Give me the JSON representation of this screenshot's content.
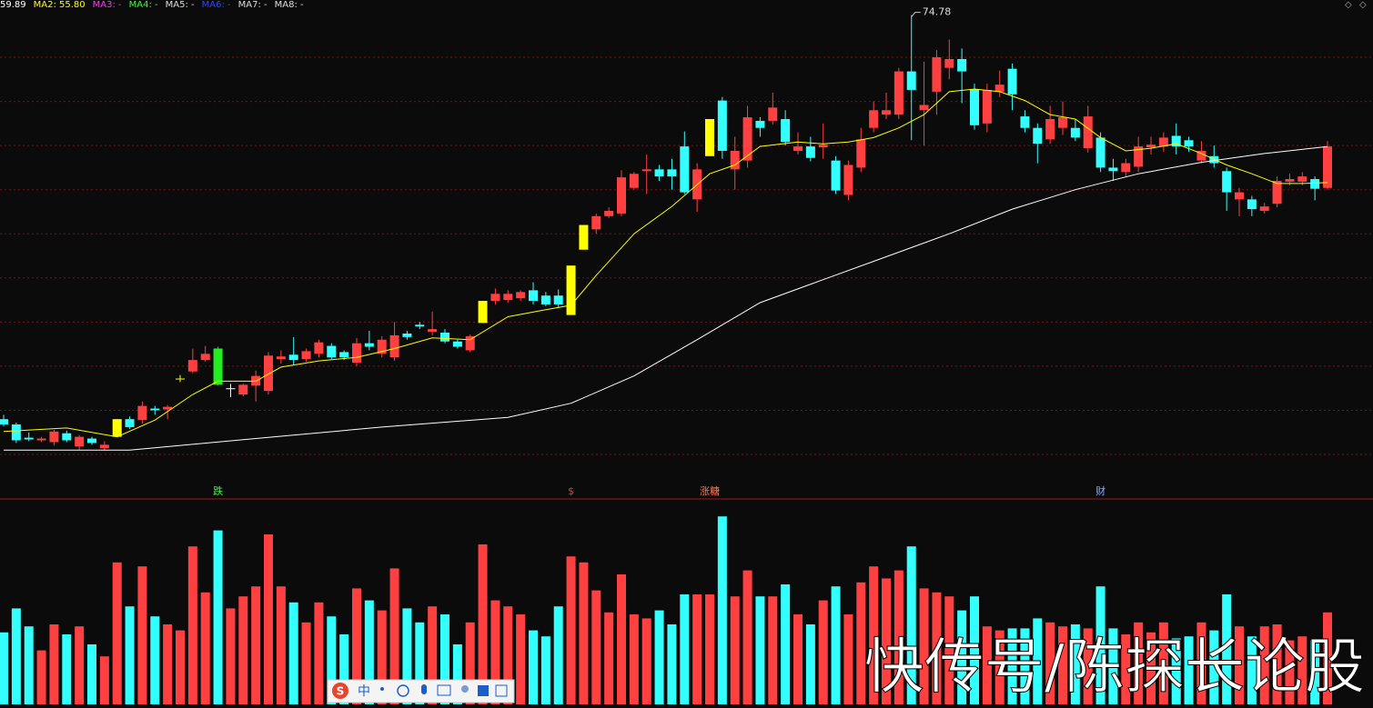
{
  "chart_data": {
    "type": "candlestick",
    "legend": [
      {
        "label": "59.89",
        "color": "#ffffff"
      },
      {
        "label": "MA2: 55.80",
        "color": "#ffff00"
      },
      {
        "label": "MA3: -",
        "color": "#ff33ff"
      },
      {
        "label": "MA4: -",
        "color": "#33ff33"
      },
      {
        "label": "MA5: -",
        "color": "#dddddd"
      },
      {
        "label": "MA6: -",
        "color": "#3344ff"
      },
      {
        "label": "MA7: -",
        "color": "#dddddd"
      },
      {
        "label": "MA8: -",
        "color": "#dddddd"
      }
    ],
    "ylim": [
      20.06,
      76.49
    ],
    "grid_levels": [
      25,
      30,
      35,
      40,
      45,
      50,
      55,
      60,
      65,
      70
    ],
    "up_color": "#ff4040",
    "down_color": "#33ffff",
    "limit_up": [
      9,
      14,
      38,
      45,
      46,
      56
    ],
    "limit_up_color": "#ffff00",
    "limit_down": [
      17
    ],
    "limit_down_color": "#22ee22",
    "max_label": 74.78,
    "max_index": 72,
    "candles": {
      "open": [
        29.0,
        28.4,
        26.9,
        26.6,
        26.4,
        27.4,
        25.9,
        26.8,
        25.7,
        27.0,
        29.0,
        28.9,
        30.2,
        30.1,
        33.6,
        34.4,
        35.7,
        37.0,
        32.5,
        31.8,
        32.8,
        32.2,
        35.8,
        36.3,
        35.8,
        36.4,
        37.3,
        36.6,
        35.4,
        37.6,
        36.4,
        36.0,
        38.7,
        39.7,
        38.9,
        38.8,
        37.8,
        36.8,
        39.9,
        42.4,
        42.5,
        42.7,
        43.6,
        43.0,
        43.0,
        40.8,
        48.2,
        50.5,
        52.0,
        52.3,
        55.2,
        57.1,
        57.3,
        57.3,
        59.9,
        53.9,
        58.8,
        65.1,
        57.3,
        58.3,
        62.8,
        62.8,
        63.0,
        59.4,
        59.9,
        59.8,
        58.3,
        54.4,
        57.5,
        62.0,
        63.5,
        63.5,
        68.4,
        64.0,
        66.1,
        68.8,
        69.8,
        66.4,
        62.5,
        66.1,
        68.7,
        63.3,
        62.0,
        60.7,
        62.0,
        62.0,
        59.7,
        60.9,
        57.5,
        57.0,
        57.6,
        59.8,
        59.9,
        61.1,
        60.6,
        58.3,
        58.8,
        57.1,
        53.9,
        53.9,
        52.6,
        53.4,
        55.9,
        55.9,
        56.2,
        55.2
      ],
      "high": [
        29.5,
        28.6,
        27.5,
        27.0,
        27.8,
        27.7,
        27.2,
        27.0,
        26.5,
        29.0,
        29.3,
        31.0,
        30.5,
        30.6,
        34.0,
        37.0,
        37.3,
        37.2,
        33.0,
        33.0,
        34.5,
        36.6,
        36.8,
        38.3,
        37.0,
        38.0,
        37.6,
        36.8,
        38.2,
        39.0,
        38.4,
        40.0,
        39.0,
        40.0,
        41.2,
        39.2,
        38.0,
        38.6,
        42.4,
        43.8,
        43.6,
        43.6,
        44.5,
        43.4,
        43.7,
        46.4,
        51.0,
        52.3,
        53.0,
        57.2,
        57.0,
        59.0,
        57.8,
        58.5,
        61.6,
        58.0,
        63.0,
        65.5,
        61.0,
        64.5,
        63.2,
        66.0,
        64.0,
        61.5,
        61.0,
        62.5,
        58.8,
        58.3,
        62.0,
        65.0,
        66.0,
        68.8,
        74.78,
        69.5,
        70.8,
        72.0,
        71.0,
        67.0,
        67.0,
        68.5,
        69.3,
        64.0,
        62.5,
        64.5,
        65.0,
        63.0,
        64.5,
        61.5,
        58.5,
        58.5,
        61.0,
        61.0,
        61.5,
        62.5,
        61.0,
        60.5,
        60.0,
        57.5,
        55.2,
        54.3,
        53.5,
        56.5,
        56.8,
        57.0,
        56.5,
        60.5
      ],
      "low": [
        28.2,
        26.3,
        26.5,
        26.4,
        26.0,
        26.4,
        25.5,
        26.1,
        25.4,
        27.0,
        27.9,
        28.5,
        29.5,
        29.0,
        33.2,
        34.2,
        35.5,
        32.8,
        31.5,
        31.6,
        31.0,
        31.8,
        35.3,
        35.2,
        35.5,
        36.0,
        35.8,
        35.7,
        35.0,
        36.8,
        36.0,
        35.6,
        38.0,
        39.2,
        38.5,
        37.6,
        37.0,
        36.6,
        39.9,
        42.0,
        42.2,
        42.4,
        42.0,
        41.8,
        41.6,
        40.8,
        48.2,
        50.0,
        51.8,
        52.0,
        55.0,
        54.5,
        56.0,
        55.0,
        54.5,
        52.5,
        58.8,
        58.5,
        55.0,
        57.5,
        61.0,
        62.4,
        60.0,
        59.0,
        58.2,
        58.5,
        54.5,
        53.8,
        57.0,
        61.5,
        63.0,
        63.0,
        60.6,
        60.0,
        63.5,
        67.5,
        64.8,
        61.8,
        61.5,
        65.5,
        64.0,
        61.5,
        58.0,
        60.2,
        61.2,
        60.5,
        59.2,
        57.0,
        56.0,
        56.5,
        57.0,
        59.0,
        59.3,
        59.0,
        59.3,
        58.0,
        57.5,
        52.6,
        52.0,
        52.0,
        52.3,
        53.0,
        55.5,
        55.5,
        53.8,
        55.0
      ],
      "close": [
        28.4,
        26.6,
        26.7,
        26.8,
        27.6,
        26.6,
        27.0,
        26.3,
        26.1,
        29.0,
        28.1,
        30.5,
        30.0,
        30.4,
        33.6,
        35.7,
        36.4,
        32.9,
        32.5,
        32.9,
        33.9,
        36.2,
        36.1,
        35.7,
        36.7,
        37.7,
        36.0,
        36.0,
        37.6,
        37.2,
        38.0,
        38.5,
        38.3,
        39.5,
        39.2,
        37.8,
        37.2,
        38.4,
        42.4,
        43.2,
        43.2,
        43.4,
        42.4,
        42.0,
        42.0,
        46.4,
        51.0,
        52.0,
        52.6,
        56.4,
        56.8,
        57.3,
        56.5,
        56.5,
        54.7,
        57.3,
        63.0,
        59.4,
        59.4,
        63.2,
        62.0,
        64.3,
        60.4,
        59.9,
        58.6,
        60.1,
        54.9,
        57.8,
        60.7,
        64.0,
        64.0,
        68.4,
        66.3,
        64.6,
        70.0,
        69.8,
        68.4,
        62.3,
        66.3,
        66.9,
        65.8,
        62.0,
        60.2,
        63.0,
        63.2,
        60.9,
        63.3,
        57.5,
        57.1,
        58.0,
        59.9,
        60.1,
        60.9,
        59.9,
        59.9,
        59.4,
        58.0,
        54.7,
        54.7,
        52.8,
        53.1,
        56.0,
        56.2,
        56.5,
        55.1,
        59.9
      ]
    },
    "ma_lines": [
      {
        "color": "#ffffff",
        "x": [
          0,
          10,
          20,
          30,
          40,
          45,
          50,
          55,
          60,
          65,
          70,
          75,
          80,
          85,
          90,
          95,
          100,
          105
        ],
        "values": [
          25.5,
          25.5,
          26.8,
          28.1,
          29.2,
          30.8,
          33.9,
          38.0,
          42.2,
          44.8,
          47.4,
          50.0,
          52.8,
          55.0,
          56.8,
          58.1,
          59.1,
          59.89
        ]
      },
      {
        "color": "#ffff00",
        "x": [
          0,
          5,
          9,
          12,
          15,
          17,
          20,
          22,
          25,
          28,
          31,
          34,
          37,
          40,
          43,
          45,
          47,
          50,
          53,
          56,
          58,
          60,
          63,
          65,
          67,
          69,
          71,
          73,
          75,
          77,
          79,
          81,
          83,
          85,
          87,
          89,
          91,
          93,
          95,
          97,
          99,
          101,
          103,
          105
        ],
        "values": [
          27.6,
          28.0,
          27.0,
          28.9,
          31.8,
          33.3,
          33.3,
          34.9,
          35.6,
          36.0,
          37.0,
          38.2,
          38.0,
          40.6,
          41.4,
          41.9,
          45.3,
          50.0,
          53.1,
          56.8,
          57.8,
          59.9,
          60.4,
          60.2,
          60.4,
          60.9,
          62.0,
          63.5,
          66.1,
          66.4,
          66.1,
          65.1,
          63.5,
          63.0,
          60.9,
          59.4,
          59.7,
          60.2,
          59.1,
          57.8,
          56.8,
          55.7,
          55.7,
          55.8
        ]
      }
    ],
    "events": [
      {
        "label": "跌",
        "index": 17,
        "color": "#33ff33"
      },
      {
        "label": "$",
        "index": 45,
        "color": "#ff3333"
      },
      {
        "label": "涨糖",
        "index": 56,
        "color": "#ff7755"
      },
      {
        "label": "财",
        "index": 87,
        "color": "#88aaff"
      }
    ],
    "volume": {
      "ylim": [
        0,
        100
      ],
      "values": [
        36,
        48,
        39,
        27,
        40,
        35,
        39,
        30,
        24,
        71,
        49,
        69,
        44,
        40,
        37,
        79,
        56,
        87,
        48,
        54,
        59,
        85,
        59,
        51,
        41,
        51,
        44,
        35,
        58,
        52,
        47,
        68,
        48,
        41,
        49,
        45,
        30,
        41,
        80,
        52,
        49,
        45,
        37,
        34,
        49,
        74,
        71,
        57,
        46,
        65,
        45,
        43,
        47,
        40,
        55,
        55,
        55,
        94,
        54,
        67,
        54,
        54,
        60,
        45,
        40,
        52,
        59,
        45,
        61,
        69,
        63,
        67,
        79,
        58,
        56,
        54,
        47,
        54,
        39,
        37,
        38,
        38,
        43,
        41,
        39,
        40,
        38,
        59,
        38,
        35,
        41,
        36,
        41,
        33,
        34,
        41,
        37,
        55,
        39,
        34,
        39,
        40,
        32,
        34,
        32,
        46
      ]
    }
  },
  "watermark": "快传号/陈探长论股",
  "ime_toolbar": {
    "label": "中"
  }
}
